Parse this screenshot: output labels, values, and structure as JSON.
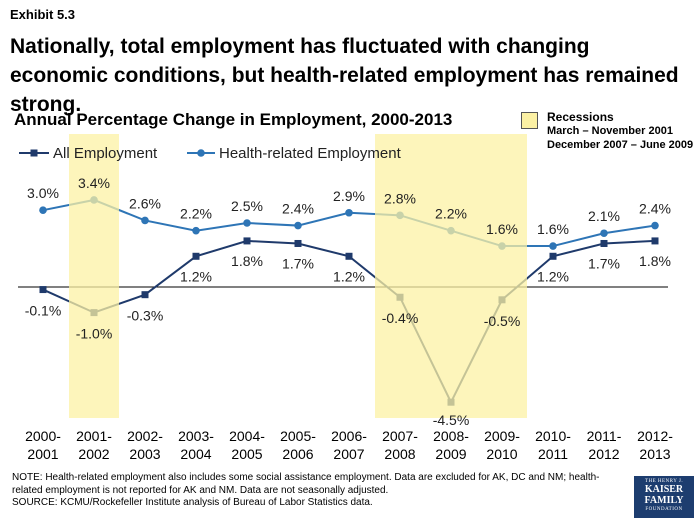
{
  "exhibit": "Exhibit 5.3",
  "headline": "Nationally, total employment has fluctuated with changing economic conditions, but health-related employment has remained strong.",
  "recession_legend": {
    "title": "Recessions",
    "line1": "March – November 2001",
    "line2": "December 2007 – June 2009"
  },
  "note": {
    "line1": "NOTE: Health-related employment also includes some social assistance employment. Data are excluded for AK, DC and NM; health-",
    "line2": "related employment is not reported for AK and NM. Data are not seasonally adjusted.",
    "line3": "SOURCE: KCMU/Rockefeller Institute analysis of Bureau of Labor Statistics data."
  },
  "logo": {
    "top": "THE HENRY J.",
    "name1": "KAISER",
    "name2": "FAMILY",
    "bottom": "FOUNDATION"
  },
  "colors": {
    "all_employment": "#1f3a6b",
    "health_employment": "#2e75b6",
    "recession_shade": "#fcf1a4"
  },
  "chart_data": {
    "type": "line",
    "title": "Annual Percentage Change in Employment, 2000-2013",
    "categories": [
      "2000-2001",
      "2001-2002",
      "2002-2003",
      "2003-2004",
      "2004-2005",
      "2005-2006",
      "2006-2007",
      "2007-2008",
      "2008-2009",
      "2009-2010",
      "2010-2011",
      "2011-2012",
      "2012-2013"
    ],
    "series": [
      {
        "name": "All Employment",
        "values": [
          -0.1,
          -1.0,
          -0.3,
          1.2,
          1.8,
          1.7,
          1.2,
          -0.4,
          -4.5,
          -0.5,
          1.2,
          1.7,
          1.8
        ],
        "labels": [
          "-0.1%",
          "-1.0%",
          "-0.3%",
          "1.2%",
          "1.8%",
          "1.7%",
          "1.2%",
          "-0.4%",
          "-4.5%",
          "-0.5%",
          "1.2%",
          "1.7%",
          "1.8%"
        ]
      },
      {
        "name": "Health-related Employment",
        "values": [
          3.0,
          3.4,
          2.6,
          2.2,
          2.5,
          2.4,
          2.9,
          2.8,
          2.2,
          1.6,
          1.6,
          2.1,
          2.4
        ],
        "labels": [
          "3.0%",
          "3.4%",
          "2.6%",
          "2.2%",
          "2.5%",
          "2.4%",
          "2.9%",
          "2.8%",
          "2.2%",
          "1.6%",
          "1.6%",
          "2.1%",
          "2.4%"
        ]
      }
    ],
    "recession_periods": [
      {
        "from": "2001-2002",
        "to": "2001-2002"
      },
      {
        "from": "2007-2008",
        "to": "2009-2010"
      }
    ],
    "legend_position": "top-left",
    "grid": false
  }
}
